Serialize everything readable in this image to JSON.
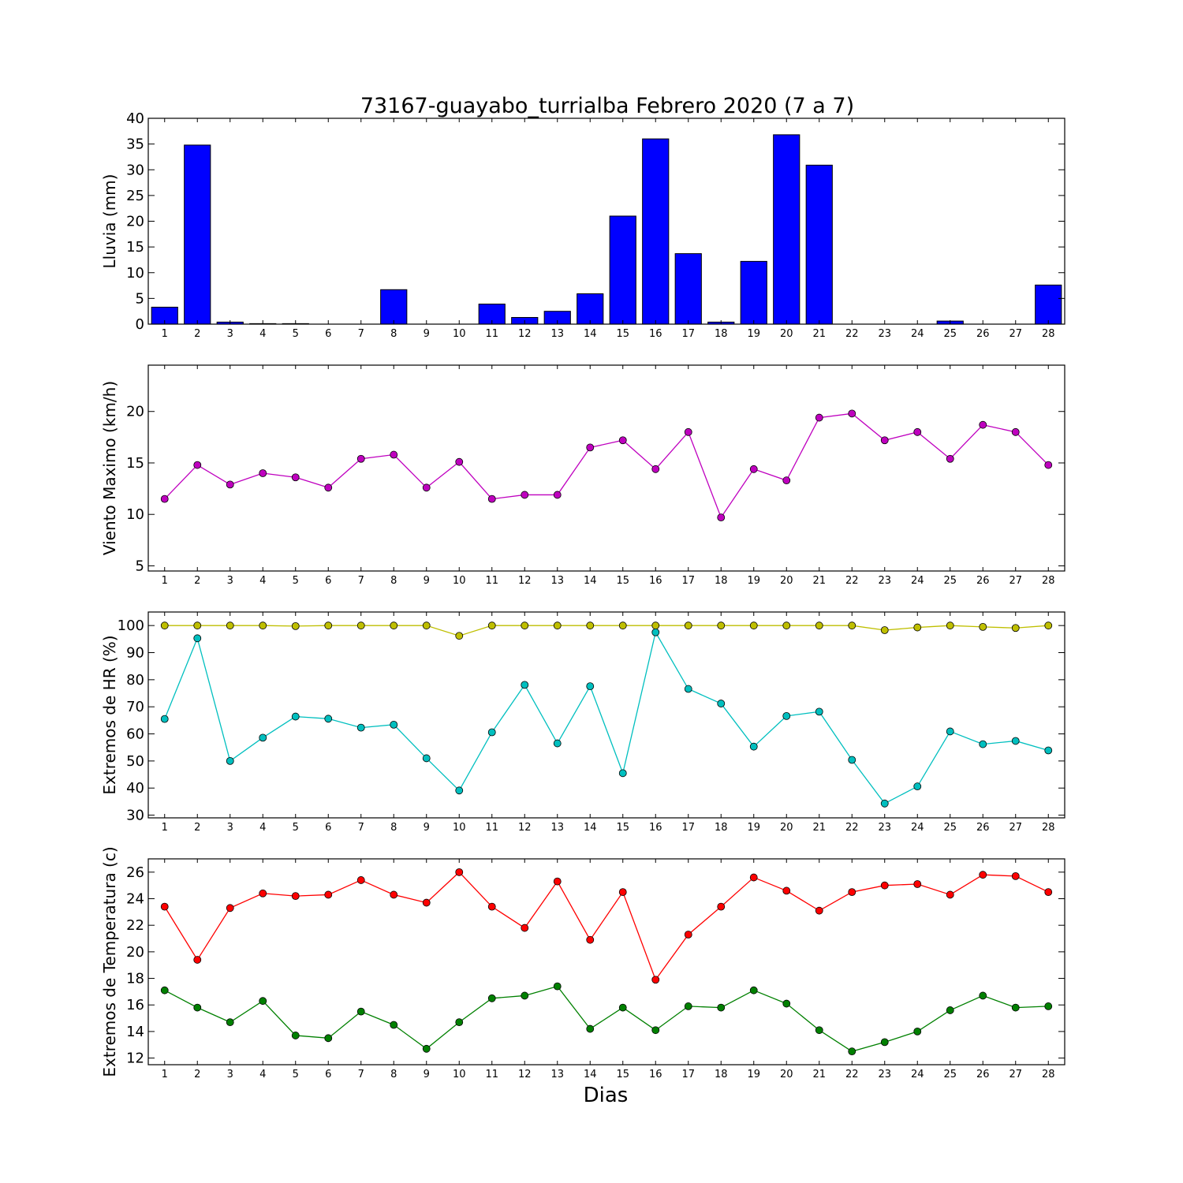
{
  "chart_data": [
    {
      "type": "bar",
      "title": "73167-guayabo_turrialba Febrero 2020  (7 a 7)",
      "ylabel": "Lluvia (mm)",
      "xlabel": "",
      "ylim": [
        0,
        40
      ],
      "yticks": [
        0,
        5,
        10,
        15,
        20,
        25,
        30,
        35,
        40
      ],
      "categories": [
        "1",
        "2",
        "3",
        "4",
        "5",
        "6",
        "7",
        "8",
        "9",
        "10",
        "11",
        "12",
        "13",
        "14",
        "15",
        "16",
        "17",
        "18",
        "19",
        "20",
        "21",
        "22",
        "23",
        "24",
        "25",
        "26",
        "27",
        "28"
      ],
      "values": [
        3.3,
        34.8,
        0.4,
        0.1,
        0.1,
        0.0,
        0.0,
        6.7,
        0.0,
        0.0,
        3.9,
        1.3,
        2.5,
        5.9,
        21.0,
        36.0,
        13.7,
        0.4,
        12.2,
        36.8,
        30.9,
        0.0,
        0.0,
        0.0,
        0.6,
        0.0,
        0.0,
        7.6
      ],
      "colors": {
        "bar": "#0000ff"
      }
    },
    {
      "type": "line",
      "ylabel": "Viento Maximo (km/h)",
      "xlabel": "",
      "ylim": [
        4.5,
        24.5
      ],
      "yticks": [
        5,
        10,
        15,
        20
      ],
      "categories": [
        "1",
        "2",
        "3",
        "4",
        "5",
        "6",
        "7",
        "8",
        "9",
        "10",
        "11",
        "12",
        "13",
        "14",
        "15",
        "16",
        "17",
        "18",
        "19",
        "20",
        "21",
        "22",
        "23",
        "24",
        "25",
        "26",
        "27",
        "28"
      ],
      "series": [
        {
          "values": [
            11.5,
            14.8,
            12.9,
            14.0,
            13.6,
            12.6,
            15.4,
            15.8,
            12.6,
            15.1,
            11.5,
            11.9,
            11.9,
            16.5,
            17.2,
            14.4,
            18.0,
            9.7,
            14.4,
            13.3,
            19.4,
            19.8,
            17.2,
            18.0,
            15.4,
            18.7,
            18.0,
            14.8
          ],
          "color": "#bf00bf"
        }
      ]
    },
    {
      "type": "line",
      "ylabel": "Extremos de HR (%)",
      "xlabel": "",
      "ylim": [
        29,
        105
      ],
      "yticks": [
        30,
        40,
        50,
        60,
        70,
        80,
        90,
        100
      ],
      "categories": [
        "1",
        "2",
        "3",
        "4",
        "5",
        "6",
        "7",
        "8",
        "9",
        "10",
        "11",
        "12",
        "13",
        "14",
        "15",
        "16",
        "17",
        "18",
        "19",
        "20",
        "21",
        "22",
        "23",
        "24",
        "25",
        "26",
        "27",
        "28"
      ],
      "series": [
        {
          "values": [
            100,
            100,
            100,
            100,
            99.8,
            100,
            100,
            100,
            100,
            96.2,
            100,
            100,
            100,
            100,
            100,
            100,
            100,
            100,
            100,
            100,
            100,
            100,
            98.3,
            99.3,
            100,
            99.5,
            99.1,
            100
          ],
          "color": "#bfbf00"
        },
        {
          "values": [
            65.5,
            95.3,
            50.0,
            58.6,
            66.4,
            65.6,
            62.3,
            63.4,
            51.0,
            39.1,
            60.6,
            78.1,
            56.5,
            77.6,
            45.5,
            97.5,
            76.6,
            71.2,
            55.3,
            66.6,
            68.2,
            50.4,
            34.3,
            40.6,
            60.9,
            56.2,
            57.4,
            53.9
          ],
          "color": "#00bfbf"
        }
      ]
    },
    {
      "type": "line",
      "ylabel": "Extremos de Temperatura (c)",
      "xlabel": "Dias",
      "ylim": [
        11.5,
        27
      ],
      "yticks": [
        12,
        14,
        16,
        18,
        20,
        22,
        24,
        26
      ],
      "categories": [
        "1",
        "2",
        "3",
        "4",
        "5",
        "6",
        "7",
        "8",
        "9",
        "10",
        "11",
        "12",
        "13",
        "14",
        "15",
        "16",
        "17",
        "18",
        "19",
        "20",
        "21",
        "22",
        "23",
        "24",
        "25",
        "26",
        "27",
        "28"
      ],
      "series": [
        {
          "values": [
            23.4,
            19.4,
            23.3,
            24.4,
            24.2,
            24.3,
            25.4,
            24.3,
            23.7,
            26.0,
            23.4,
            21.8,
            25.3,
            20.9,
            24.5,
            17.9,
            21.3,
            23.4,
            25.6,
            24.6,
            23.1,
            24.5,
            25.0,
            25.1,
            24.3,
            25.8,
            25.7,
            24.5
          ],
          "color": "#ff0000"
        },
        {
          "values": [
            17.1,
            15.8,
            14.7,
            16.3,
            13.7,
            13.5,
            15.5,
            14.5,
            12.7,
            14.7,
            16.5,
            16.7,
            17.4,
            14.2,
            15.8,
            14.1,
            15.9,
            15.8,
            17.1,
            16.1,
            14.1,
            12.5,
            13.2,
            14.0,
            15.6,
            16.7,
            15.8,
            15.9
          ],
          "color": "#008000"
        }
      ]
    }
  ]
}
